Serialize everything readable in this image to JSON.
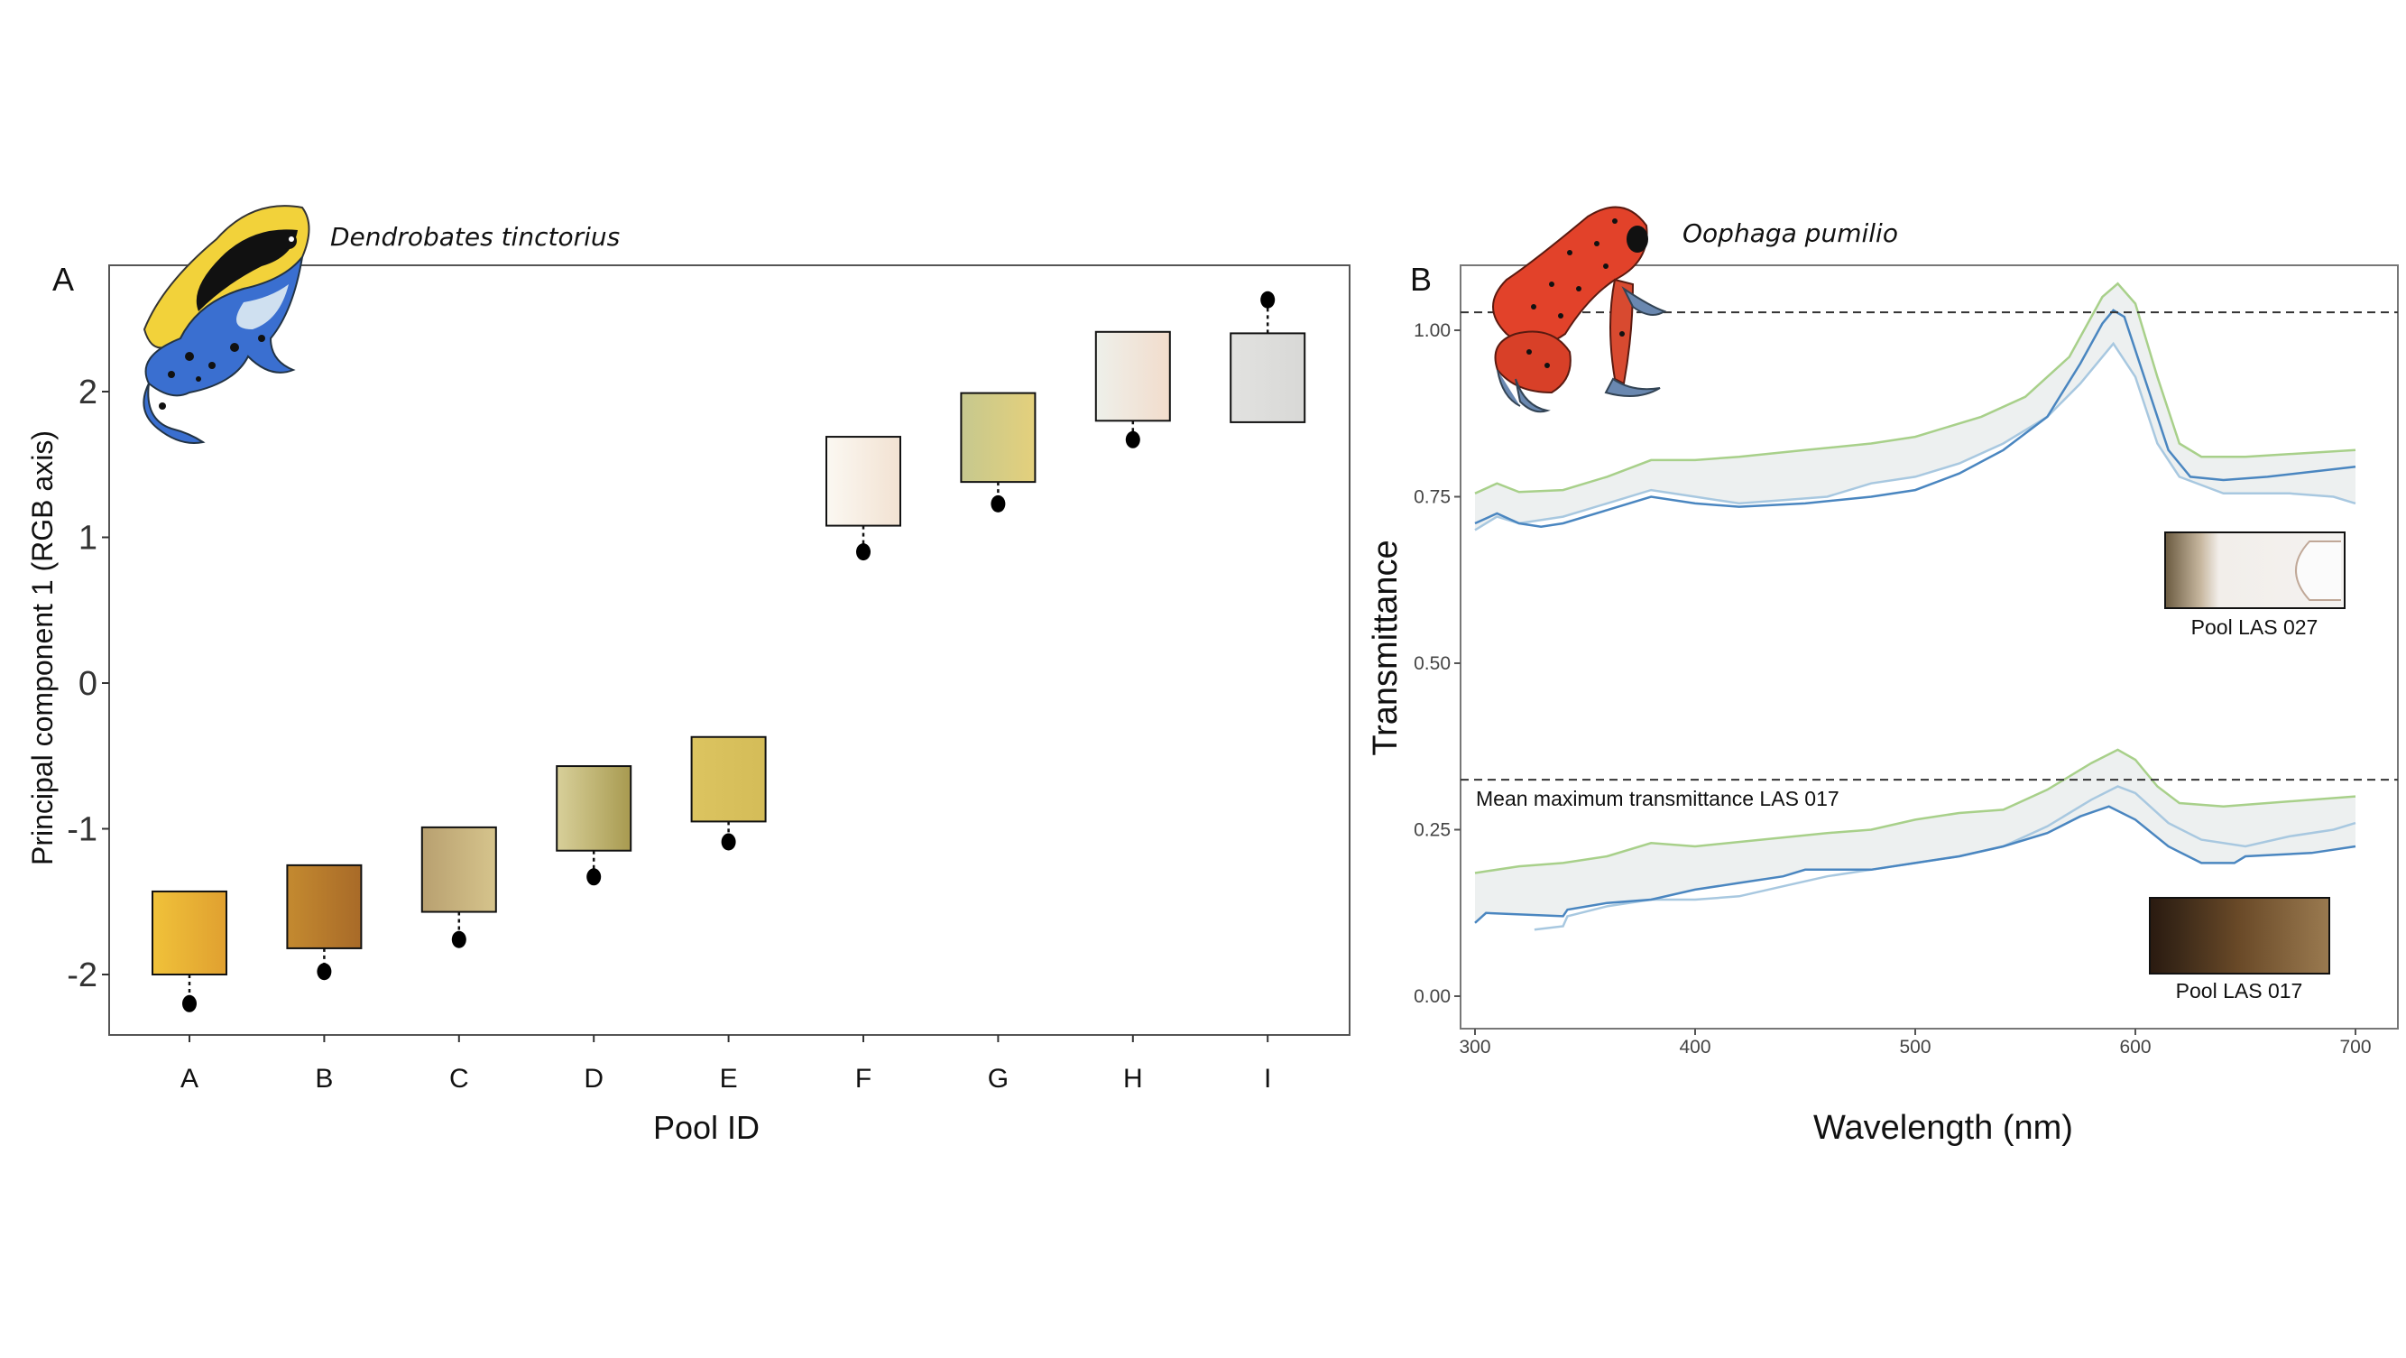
{
  "chart_data": [
    {
      "type": "scatter",
      "panel_label": "A",
      "species_label": "Dendrobates tinctorius",
      "xlabel": "Pool ID",
      "ylabel": "Principal component 1 (RGB axis)",
      "categories": [
        "A",
        "B",
        "C",
        "D",
        "E",
        "F",
        "G",
        "H",
        "I"
      ],
      "yticks": [
        "-2",
        "-1",
        "0",
        "1",
        "2"
      ],
      "ytick_values": [
        -2,
        -1,
        0,
        1,
        2
      ],
      "ylim": [
        -2.45,
        2.9
      ],
      "values": [
        -2.2,
        -1.98,
        -1.76,
        -1.33,
        -1.09,
        0.9,
        1.23,
        1.67,
        2.63
      ],
      "swatches": [
        {
          "top": -1.43,
          "bottom": -2.0,
          "colors": [
            "#f0c23a",
            "#e0a030"
          ]
        },
        {
          "top": -1.25,
          "bottom": -1.82,
          "colors": [
            "#c48a30",
            "#a86a28"
          ]
        },
        {
          "top": -0.99,
          "bottom": -1.57,
          "colors": [
            "#b8a070",
            "#d6c48c"
          ]
        },
        {
          "top": -0.57,
          "bottom": -1.15,
          "colors": [
            "#d8d09a",
            "#a89a50"
          ]
        },
        {
          "top": -0.37,
          "bottom": -0.95,
          "colors": [
            "#dcc460",
            "#d4bc58"
          ]
        },
        {
          "top": 1.69,
          "bottom": 1.08,
          "colors": [
            "#fbf8f2",
            "#f2e2d2"
          ]
        },
        {
          "top": 1.99,
          "bottom": 1.38,
          "colors": [
            "#c6c88e",
            "#e4d07c"
          ]
        },
        {
          "top": 2.41,
          "bottom": 1.8,
          "colors": [
            "#eef0ea",
            "#f2dccc"
          ]
        },
        {
          "top": 2.4,
          "bottom": 1.79,
          "colors": [
            "#e2e2e0",
            "#d8d8d6"
          ]
        }
      ],
      "grid": false
    },
    {
      "type": "line",
      "panel_label": "B",
      "species_label": "Oophaga pumilio",
      "xlabel": "Wavelength (nm)",
      "ylabel": "Transmittance",
      "xlim": [
        300,
        700
      ],
      "xticks": [
        "300",
        "400",
        "500",
        "600",
        "700"
      ],
      "xtick_values": [
        300,
        400,
        500,
        600,
        700
      ],
      "yticks": [
        "0.00",
        "0.25",
        "0.50",
        "0.75",
        "1.00"
      ],
      "ytick_values": [
        0,
        0.25,
        0.5,
        0.75,
        1.0
      ],
      "ylim": [
        -0.05,
        1.12
      ],
      "hlines": [
        {
          "y": 1.027
        },
        {
          "y": 0.325,
          "label": "Mean maximum transmittance LAS 017"
        }
      ],
      "colors": {
        "upper": "#a8d08a",
        "mean": "#4a86c0",
        "lower": "#a8c8e0",
        "band": "#e8ecec"
      },
      "groups": [
        {
          "inset_label": "Pool LAS 027",
          "upper": [
            [
              300,
              0.755
            ],
            [
              310,
              0.77
            ],
            [
              320,
              0.757
            ],
            [
              340,
              0.76
            ],
            [
              360,
              0.78
            ],
            [
              380,
              0.805
            ],
            [
              400,
              0.805
            ],
            [
              420,
              0.81
            ],
            [
              450,
              0.82
            ],
            [
              480,
              0.83
            ],
            [
              500,
              0.84
            ],
            [
              530,
              0.87
            ],
            [
              550,
              0.9
            ],
            [
              570,
              0.96
            ],
            [
              585,
              1.05
            ],
            [
              592,
              1.07
            ],
            [
              600,
              1.04
            ],
            [
              610,
              0.93
            ],
            [
              620,
              0.83
            ],
            [
              630,
              0.81
            ],
            [
              650,
              0.81
            ],
            [
              700,
              0.82
            ]
          ],
          "mean": [
            [
              300,
              0.71
            ],
            [
              310,
              0.725
            ],
            [
              320,
              0.71
            ],
            [
              330,
              0.705
            ],
            [
              340,
              0.71
            ],
            [
              360,
              0.73
            ],
            [
              380,
              0.75
            ],
            [
              400,
              0.74
            ],
            [
              420,
              0.735
            ],
            [
              450,
              0.74
            ],
            [
              480,
              0.75
            ],
            [
              500,
              0.76
            ],
            [
              520,
              0.785
            ],
            [
              540,
              0.82
            ],
            [
              560,
              0.87
            ],
            [
              575,
              0.95
            ],
            [
              585,
              1.01
            ],
            [
              590,
              1.03
            ],
            [
              595,
              1.02
            ],
            [
              605,
              0.92
            ],
            [
              615,
              0.82
            ],
            [
              625,
              0.78
            ],
            [
              640,
              0.775
            ],
            [
              660,
              0.78
            ],
            [
              700,
              0.795
            ]
          ],
          "lower": [
            [
              300,
              0.7
            ],
            [
              310,
              0.72
            ],
            [
              320,
              0.71
            ],
            [
              340,
              0.72
            ],
            [
              360,
              0.74
            ],
            [
              380,
              0.76
            ],
            [
              400,
              0.75
            ],
            [
              420,
              0.74
            ],
            [
              440,
              0.745
            ],
            [
              460,
              0.75
            ],
            [
              480,
              0.77
            ],
            [
              500,
              0.78
            ],
            [
              520,
              0.8
            ],
            [
              540,
              0.83
            ],
            [
              560,
              0.87
            ],
            [
              575,
              0.92
            ],
            [
              590,
              0.98
            ],
            [
              600,
              0.93
            ],
            [
              610,
              0.83
            ],
            [
              620,
              0.78
            ],
            [
              640,
              0.755
            ],
            [
              670,
              0.755
            ],
            [
              690,
              0.75
            ],
            [
              700,
              0.74
            ]
          ]
        },
        {
          "inset_label": "Pool LAS 017",
          "upper": [
            [
              300,
              0.185
            ],
            [
              320,
              0.195
            ],
            [
              340,
              0.2
            ],
            [
              360,
              0.21
            ],
            [
              380,
              0.23
            ],
            [
              400,
              0.225
            ],
            [
              430,
              0.235
            ],
            [
              460,
              0.245
            ],
            [
              480,
              0.25
            ],
            [
              500,
              0.265
            ],
            [
              520,
              0.275
            ],
            [
              540,
              0.28
            ],
            [
              560,
              0.31
            ],
            [
              580,
              0.35
            ],
            [
              592,
              0.37
            ],
            [
              600,
              0.355
            ],
            [
              610,
              0.315
            ],
            [
              620,
              0.29
            ],
            [
              640,
              0.285
            ],
            [
              660,
              0.29
            ],
            [
              700,
              0.3
            ]
          ],
          "mean": [
            [
              300,
              0.11
            ],
            [
              305,
              0.125
            ],
            [
              340,
              0.12
            ],
            [
              342,
              0.13
            ],
            [
              360,
              0.14
            ],
            [
              380,
              0.145
            ],
            [
              400,
              0.16
            ],
            [
              420,
              0.17
            ],
            [
              440,
              0.18
            ],
            [
              450,
              0.19
            ],
            [
              480,
              0.19
            ],
            [
              500,
              0.2
            ],
            [
              520,
              0.21
            ],
            [
              540,
              0.225
            ],
            [
              560,
              0.245
            ],
            [
              575,
              0.27
            ],
            [
              588,
              0.285
            ],
            [
              600,
              0.265
            ],
            [
              615,
              0.225
            ],
            [
              630,
              0.2
            ],
            [
              645,
              0.2
            ],
            [
              650,
              0.21
            ],
            [
              680,
              0.215
            ],
            [
              700,
              0.225
            ]
          ],
          "lower": [
            [
              327,
              0.1
            ],
            [
              340,
              0.105
            ],
            [
              342,
              0.12
            ],
            [
              360,
              0.135
            ],
            [
              380,
              0.145
            ],
            [
              400,
              0.145
            ],
            [
              420,
              0.15
            ],
            [
              440,
              0.165
            ],
            [
              460,
              0.18
            ],
            [
              480,
              0.19
            ],
            [
              500,
              0.2
            ],
            [
              520,
              0.21
            ],
            [
              540,
              0.225
            ],
            [
              560,
              0.255
            ],
            [
              580,
              0.295
            ],
            [
              592,
              0.315
            ],
            [
              600,
              0.305
            ],
            [
              615,
              0.26
            ],
            [
              630,
              0.235
            ],
            [
              650,
              0.225
            ],
            [
              670,
              0.24
            ],
            [
              690,
              0.25
            ],
            [
              700,
              0.26
            ]
          ]
        }
      ],
      "grid": false
    }
  ]
}
